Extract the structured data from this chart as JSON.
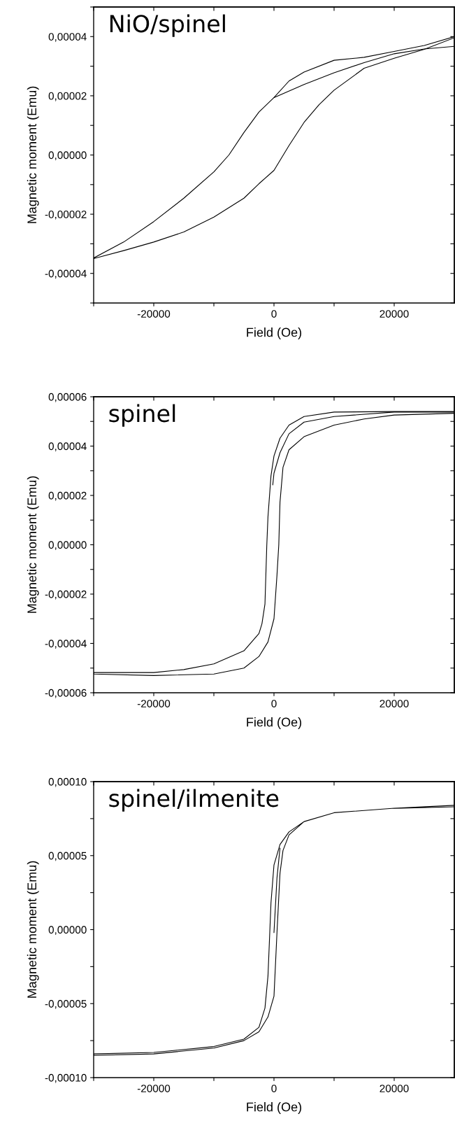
{
  "chart_data": [
    {
      "type": "line",
      "title": "NiO/spinel",
      "xlabel": "Field (Oe)",
      "ylabel": "Magnetic moment (Emu)",
      "xlim": [
        -30000,
        30000
      ],
      "ylim": [
        -5e-05,
        5e-05
      ],
      "xticks": [
        {
          "value": -30000,
          "label": null
        },
        -20000,
        {
          "value": -10000,
          "label": null
        },
        0,
        {
          "value": 10000,
          "label": null
        },
        20000
      ],
      "yticks": [
        {
          "value": -5e-05,
          "label": null
        },
        {
          "value": -4e-05,
          "label": "-0,00004"
        },
        {
          "value": -3e-05,
          "label": null
        },
        {
          "value": -2e-05,
          "label": "-0,00002"
        },
        {
          "value": -1e-05,
          "label": null
        },
        {
          "value": 0,
          "label": "0,00000"
        },
        {
          "value": 1e-05,
          "label": null
        },
        {
          "value": 2e-05,
          "label": "0,00002"
        },
        {
          "value": 3e-05,
          "label": null
        },
        {
          "value": 4e-05,
          "label": "0,00004"
        },
        {
          "value": 5e-05,
          "label": null
        }
      ],
      "grid": false,
      "series": [
        {
          "color": "#000000",
          "x": [
            30000,
            25000,
            20000,
            15000,
            10000,
            5000,
            2500,
            0,
            -2500,
            -5000,
            -7500,
            -10000,
            -15000,
            -20000,
            -25000,
            -30000,
            -30000,
            -25000,
            -20000,
            -15000,
            -10000,
            -5000,
            -2500,
            0,
            2500,
            5000,
            7500,
            10000,
            15000,
            20000,
            25000,
            30000
          ],
          "values": [
            4e-05,
            3.7e-05,
            3.5e-05,
            3.3e-05,
            3.2e-05,
            2.8e-05,
            2.5e-05,
            1.94e-05,
            1.45e-05,
            7.6e-06,
            0.0,
            -5.7e-06,
            -1.46e-05,
            -2.25e-05,
            -2.94e-05,
            -3.48e-05,
            -3.5e-05,
            -3.23e-05,
            -2.94e-05,
            -2.6e-05,
            -2.1e-05,
            -1.46e-05,
            -9.7e-06,
            -5.2e-06,
            3.2e-06,
            1.1e-05,
            1.7e-05,
            2.19e-05,
            2.93e-05,
            3.27e-05,
            3.57e-05,
            3.96e-05
          ]
        },
        {
          "color": "#000000",
          "x": [
            0,
            5000,
            10000,
            15000,
            20000,
            25000,
            30000
          ],
          "values": [
            1.94e-05,
            2.38e-05,
            2.78e-05,
            3.12e-05,
            3.42e-05,
            3.58e-05,
            3.67e-05
          ]
        }
      ]
    },
    {
      "type": "line",
      "title": "spinel",
      "xlabel": "Field (Oe)",
      "ylabel": "Magnetic moment (Emu)",
      "xlim": [
        -30000,
        30000
      ],
      "ylim": [
        -6e-05,
        6e-05
      ],
      "xticks": [
        {
          "value": -30000,
          "label": null
        },
        -20000,
        {
          "value": -10000,
          "label": null
        },
        0,
        {
          "value": 10000,
          "label": null
        },
        20000
      ],
      "yticks": [
        {
          "value": -6e-05,
          "label": "-0,00006"
        },
        {
          "value": -5e-05,
          "label": null
        },
        {
          "value": -4e-05,
          "label": "-0,00004"
        },
        {
          "value": -3e-05,
          "label": null
        },
        {
          "value": -2e-05,
          "label": "-0,00002"
        },
        {
          "value": -1e-05,
          "label": null
        },
        {
          "value": 0,
          "label": "0,00000"
        },
        {
          "value": 1e-05,
          "label": null
        },
        {
          "value": 2e-05,
          "label": "0,00002"
        },
        {
          "value": 3e-05,
          "label": null
        },
        {
          "value": 4e-05,
          "label": "0,00004"
        },
        {
          "value": 5e-05,
          "label": null
        },
        {
          "value": 6e-05,
          "label": "0,00006"
        }
      ],
      "grid": false,
      "series": [
        {
          "color": "#000000",
          "x": [
            30000,
            20000,
            10000,
            5000,
            2500,
            1000,
            0,
            -500,
            -1000,
            -1200,
            -1500,
            -2000,
            -2500,
            -5000,
            -10000,
            -15000,
            -20000,
            -30000,
            -30000,
            -20000,
            -10000,
            -5000,
            -2500,
            -1000,
            0,
            500,
            800,
            1000,
            1500,
            2500,
            5000,
            10000,
            15000,
            20000,
            30000
          ],
          "values": [
            5.4e-05,
            5.4e-05,
            5.38e-05,
            5.2e-05,
            4.85e-05,
            4.32e-05,
            3.6e-05,
            2.79e-05,
            1.13e-05,
            -5e-07,
            -2.4e-05,
            -3.2e-05,
            -3.6e-05,
            -4.3e-05,
            -4.83e-05,
            -5.06e-05,
            -5.18e-05,
            -5.18e-05,
            -5.24e-05,
            -5.3e-05,
            -5.24e-05,
            -5e-05,
            -4.53e-05,
            -3.94e-05,
            -3e-05,
            -1.23e-05,
            0.0,
            1.72e-05,
            3.14e-05,
            3.85e-05,
            4.38e-05,
            4.85e-05,
            5.1e-05,
            5.26e-05,
            5.33e-05
          ]
        },
        {
          "color": "#000000",
          "x": [
            -200,
            0,
            1000,
            2500,
            5000,
            10000,
            20000,
            30000
          ],
          "values": [
            2.43e-05,
            2.9e-05,
            3.73e-05,
            4.5e-05,
            4.97e-05,
            5.2e-05,
            5.38e-05,
            5.38e-05
          ]
        }
      ]
    },
    {
      "type": "line",
      "title": "spinel/ilmenite",
      "xlabel": "Field (Oe)",
      "ylabel": "Magnetic moment (Emu)",
      "xlim": [
        -30000,
        30000
      ],
      "ylim": [
        -0.0001,
        0.0001
      ],
      "xticks": [
        {
          "value": -30000,
          "label": null
        },
        -20000,
        {
          "value": -10000,
          "label": null
        },
        0,
        {
          "value": 10000,
          "label": null
        },
        20000
      ],
      "yticks": [
        {
          "value": -0.0001,
          "label": "-0,00010"
        },
        {
          "value": -7.5e-05,
          "label": null
        },
        {
          "value": -5e-05,
          "label": "-0,00005"
        },
        {
          "value": -2.5e-05,
          "label": null
        },
        {
          "value": 0,
          "label": "0,00000"
        },
        {
          "value": 2.5e-05,
          "label": null
        },
        {
          "value": 5e-05,
          "label": "0,00005"
        },
        {
          "value": 7.5e-05,
          "label": null
        },
        {
          "value": 0.0001,
          "label": "0,00010"
        }
      ],
      "grid": false,
      "series": [
        {
          "color": "#000000",
          "x": [
            30000,
            20000,
            10000,
            5000,
            2500,
            1000,
            0,
            -500,
            -700,
            -1000,
            -1500,
            -2500,
            -5000,
            -10000,
            -20000,
            -30000,
            -30000,
            -20000,
            -10000,
            -5000,
            -2500,
            -1000,
            0,
            500,
            1000,
            1500,
            2500,
            5000,
            10000,
            20000,
            30000
          ],
          "values": [
            8.3e-05,
            8.2e-05,
            7.9e-05,
            7.3e-05,
            6.6e-05,
            5.75e-05,
            4.37e-05,
            1.8e-05,
            -2e-06,
            -3.14e-05,
            -5.3e-05,
            -6.6e-05,
            -7.4e-05,
            -7.9e-05,
            -8.3e-05,
            -8.4e-05,
            -8.5e-05,
            -8.4e-05,
            -8e-05,
            -7.5e-05,
            -6.9e-05,
            -5.9e-05,
            -4.5e-05,
            -2e-06,
            3.8e-05,
            5.35e-05,
            6.4e-05,
            7.3e-05,
            7.9e-05,
            8.2e-05,
            8.4e-05
          ]
        },
        {
          "color": "#000000",
          "x": [
            0,
            500,
            1000
          ],
          "values": [
            -2e-06,
            3.5e-05,
            5.5e-05
          ]
        }
      ]
    }
  ]
}
